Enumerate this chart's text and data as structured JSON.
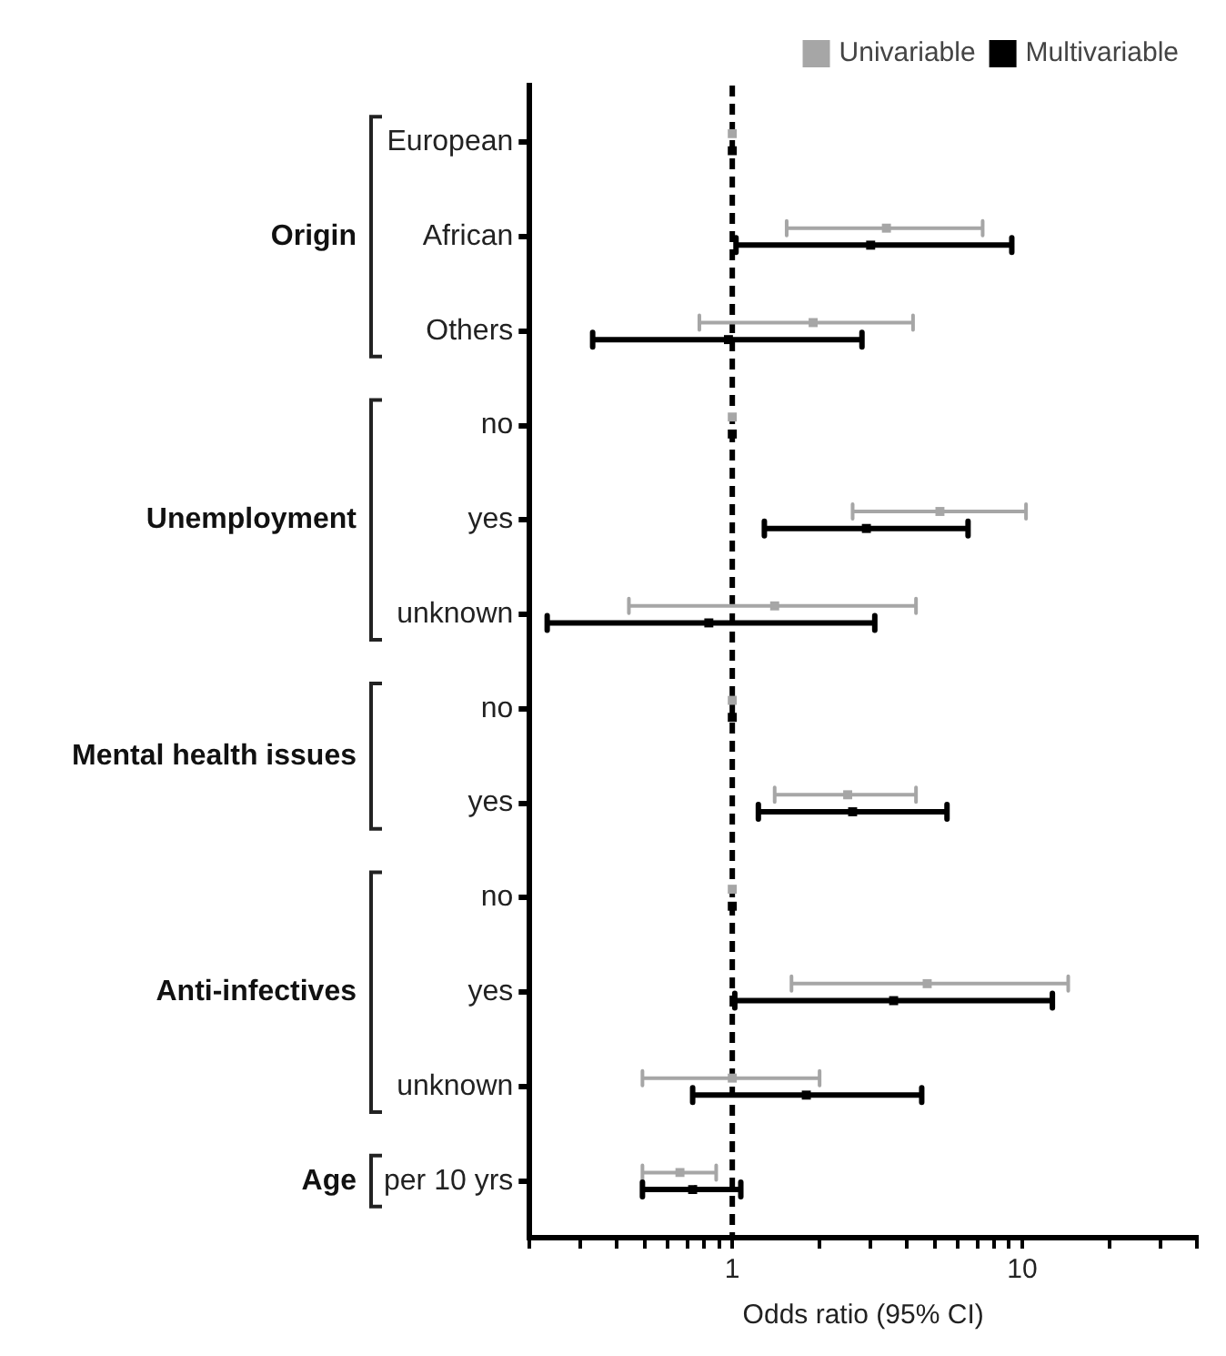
{
  "chart_data": {
    "type": "scatter",
    "orientation": "horizontal",
    "xlabel": "Odds ratio (95% CI)",
    "log": "x",
    "grid": false,
    "legend": "top right",
    "categories": [
      "European",
      "African",
      "Others",
      "no",
      "yes",
      "unknown",
      "no",
      "yes",
      "no",
      "yes",
      "unknown",
      "per 10 yrs"
    ],
    "annotations": [
      "Origin",
      "Unemployment",
      "Mental health issues",
      "Anti-infectives",
      "Age"
    ],
    "xlim": [
      0.2,
      40
    ],
    "xticks": [
      {
        "value": 0.2,
        "label": null
      },
      {
        "value": 0.3,
        "label": null
      },
      {
        "value": 0.4,
        "label": null
      },
      {
        "value": 0.5,
        "label": null
      },
      {
        "value": 0.6,
        "label": null
      },
      {
        "value": 0.7,
        "label": null
      },
      {
        "value": 0.8,
        "label": null
      },
      {
        "value": 0.9,
        "label": null
      },
      1,
      {
        "value": 2,
        "label": null
      },
      {
        "value": 3,
        "label": null
      },
      {
        "value": 4,
        "label": null
      },
      {
        "value": 5,
        "label": null
      },
      {
        "value": 6,
        "label": null
      },
      {
        "value": 7,
        "label": null
      },
      {
        "value": 8,
        "label": null
      },
      {
        "value": 9,
        "label": null
      },
      10,
      {
        "value": 20,
        "label": null
      },
      {
        "value": 30,
        "label": null
      },
      {
        "value": 40,
        "label": null
      }
    ],
    "series": [
      {
        "name": "Univariable",
        "color": "#a6a6a6",
        "values": [
          1,
          3.4,
          1.9,
          1,
          5.2,
          1.4,
          1,
          2.5,
          1,
          4.7,
          1.0,
          0.66
        ],
        "errors": [
          null,
          [
            1.54,
            7.3
          ],
          [
            0.77,
            4.2
          ],
          null,
          [
            2.6,
            10.3
          ],
          [
            0.44,
            4.3
          ],
          null,
          [
            1.4,
            4.3
          ],
          null,
          [
            1.6,
            14.4
          ],
          [
            0.49,
            2.0
          ],
          [
            0.49,
            0.88
          ]
        ]
      },
      {
        "name": "Multivariable",
        "color": "#000000",
        "values": [
          1,
          3.0,
          0.97,
          1,
          2.9,
          0.83,
          1,
          2.6,
          1,
          3.6,
          1.8,
          0.73
        ],
        "errors": [
          null,
          [
            1.03,
            9.2
          ],
          [
            0.33,
            2.8
          ],
          null,
          [
            1.29,
            6.5
          ],
          [
            0.23,
            3.1
          ],
          null,
          [
            1.23,
            5.5
          ],
          null,
          [
            1.02,
            12.7
          ],
          [
            0.73,
            4.5
          ],
          [
            0.49,
            1.07
          ]
        ]
      }
    ],
    "ref_lines": [
      {
        "axis": "x",
        "value": 1,
        "line_style": "dashed",
        "color": "#000000"
      }
    ]
  }
}
